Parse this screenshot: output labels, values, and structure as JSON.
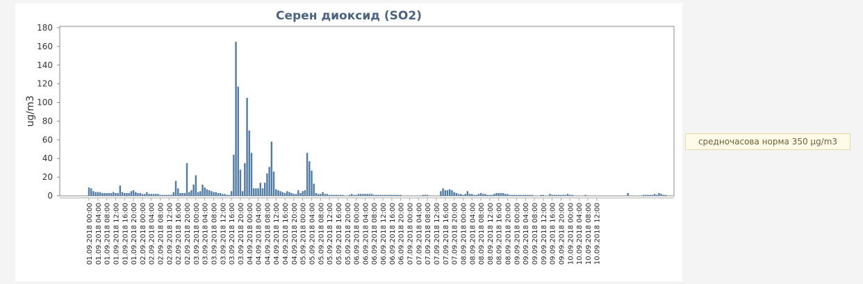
{
  "norm_note": "средночасова норма 350 µg/m3",
  "colors": {
    "bar": "#4f7ba4",
    "title": "#4b6382",
    "frame": "#888888"
  },
  "chart_data": {
    "type": "bar",
    "title": "Серен диоксид (SO2)",
    "xlabel": "",
    "ylabel": "ug/m3",
    "ylim": [
      0,
      180
    ],
    "yticks": [
      0,
      20,
      40,
      60,
      80,
      100,
      120,
      140,
      160,
      180
    ],
    "grid": false,
    "legend": "none",
    "start": "01.09.2018 00:00",
    "interval_hours": 1,
    "values": [
      9,
      8,
      5,
      4,
      4,
      4,
      3,
      3,
      3,
      3,
      3,
      4,
      3,
      3,
      11,
      4,
      3,
      3,
      3,
      5,
      6,
      4,
      3,
      3,
      2,
      2,
      4,
      2,
      2,
      2,
      2,
      2,
      1,
      1,
      1,
      1,
      1,
      1,
      4,
      16,
      8,
      3,
      3,
      3,
      35,
      4,
      6,
      12,
      22,
      4,
      5,
      12,
      9,
      7,
      6,
      5,
      4,
      4,
      3,
      3,
      2,
      2,
      1,
      1,
      5,
      44,
      165,
      117,
      28,
      5,
      35,
      105,
      70,
      46,
      8,
      8,
      8,
      14,
      8,
      14,
      24,
      31,
      58,
      26,
      7,
      6,
      5,
      4,
      3,
      5,
      4,
      3,
      2,
      2,
      6,
      3,
      5,
      6,
      46,
      37,
      27,
      13,
      3,
      2,
      2,
      4,
      2,
      2,
      1,
      1,
      1,
      1,
      1,
      1,
      1,
      0,
      0,
      1,
      2,
      1,
      1,
      2,
      2,
      2,
      2,
      2,
      2,
      2,
      1,
      1,
      1,
      1,
      1,
      1,
      1,
      1,
      1,
      1,
      1,
      1,
      1,
      0,
      0,
      0,
      0,
      0,
      0,
      0,
      0,
      0,
      1,
      1,
      1,
      0,
      0,
      0,
      0,
      0,
      5,
      8,
      6,
      6,
      7,
      6,
      4,
      3,
      2,
      2,
      1,
      2,
      5,
      2,
      2,
      1,
      1,
      2,
      3,
      2,
      2,
      1,
      1,
      1,
      2,
      3,
      3,
      3,
      3,
      2,
      2,
      1,
      1,
      1,
      1,
      1,
      1,
      1,
      1,
      1,
      1,
      1,
      0,
      0,
      0,
      1,
      1,
      0,
      0,
      2,
      1,
      1,
      1,
      1,
      1,
      1,
      1,
      2,
      1,
      1,
      0,
      0,
      0,
      0,
      0,
      1,
      0,
      0,
      0,
      0,
      0,
      0,
      0,
      0,
      0,
      0,
      0,
      0,
      0,
      0,
      0,
      0,
      0,
      0,
      3,
      0,
      0,
      0,
      0,
      0,
      0,
      1,
      1,
      1,
      1,
      1,
      2,
      1,
      3,
      2,
      1,
      1
    ],
    "tick_labels": [
      "01.09.2018 00:00",
      "01.09.2018 04:00",
      "01.09.2018 08:00",
      "01.09.2018 12:00",
      "01.09.2018 16:00",
      "01.09.2018 20:00",
      "02.09.2018 00:00",
      "02.09.2018 04:00",
      "02.09.2018 08:00",
      "02.09.2018 12:00",
      "02.09.2018 16:00",
      "02.09.2018 20:00",
      "03.09.2018 00:00",
      "03.09.2018 04:00",
      "03.09.2018 08:00",
      "03.09.2018 12:00",
      "03.09.2018 16:00",
      "03.09.2018 20:00",
      "04.09.2018 00:00",
      "04.09.2018 04:00",
      "04.09.2018 08:00",
      "04.09.2018 12:00",
      "04.09.2018 16:00",
      "04.09.2018 20:00",
      "05.09.2018 00:00",
      "05.09.2018 04:00",
      "05.09.2018 08:00",
      "05.09.2018 12:00",
      "05.09.2018 16:00",
      "05.09.2018 20:00",
      "06.09.2018 00:00",
      "06.09.2018 04:00",
      "06.09.2018 08:00",
      "06.09.2018 12:00",
      "06.09.2018 16:00",
      "06.09.2018 20:00",
      "07.09.2018 00:00",
      "07.09.2018 04:00",
      "07.09.2018 08:00",
      "07.09.2018 12:00",
      "07.09.2018 16:00",
      "07.09.2018 20:00",
      "08.09.2018 00:00",
      "08.09.2018 04:00",
      "08.09.2018 08:00",
      "08.09.2018 12:00",
      "08.09.2018 16:00",
      "08.09.2018 20:00",
      "09.09.2018 00:00",
      "09.09.2018 04:00",
      "09.09.2018 08:00",
      "09.09.2018 12:00",
      "09.09.2018 16:00",
      "09.09.2018 20:00",
      "10.09.2018 00:00",
      "10.09.2018 04:00",
      "10.09.2018 08:00",
      "10.09.2018 12:00"
    ]
  }
}
